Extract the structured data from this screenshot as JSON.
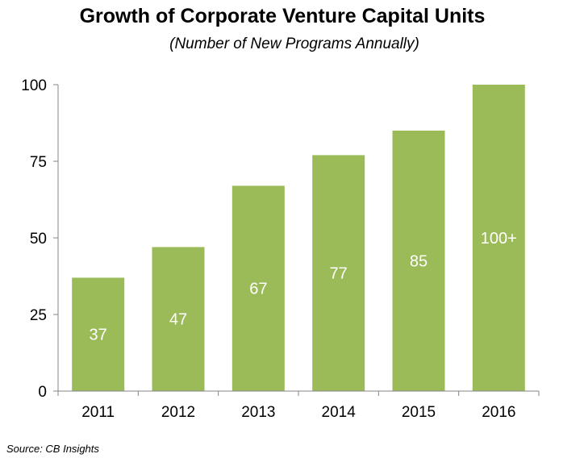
{
  "chart_data": {
    "type": "bar",
    "title": "Growth of Corporate Venture Capital Units",
    "subtitle": "(Number of New Programs Annually)",
    "categories": [
      "2011",
      "2012",
      "2013",
      "2014",
      "2015",
      "2016"
    ],
    "values": [
      37,
      47,
      67,
      77,
      85,
      100
    ],
    "data_labels": [
      "37",
      "47",
      "67",
      "77",
      "85",
      "100+"
    ],
    "yticks": [
      "0",
      "25",
      "50",
      "75",
      "100"
    ],
    "ylim": [
      0,
      100
    ],
    "grid": false,
    "legend": "none",
    "bar_color": "#9BBB59",
    "label_color": "#ffffff",
    "source": "Source: CB Insights"
  }
}
